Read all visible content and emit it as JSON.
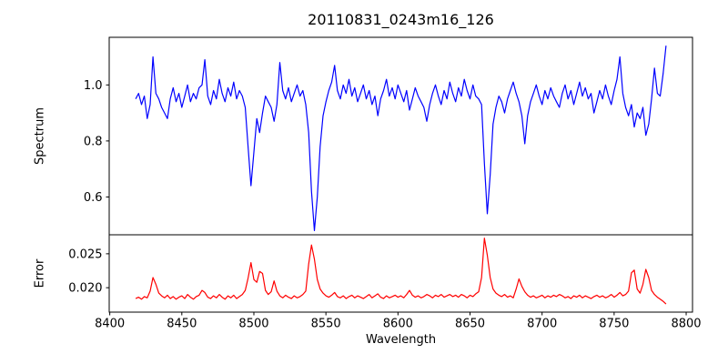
{
  "chart_data": {
    "type": "line",
    "title": "20110831_0243m16_126",
    "xlabel": "Wavelength",
    "grid": false,
    "legend": "none",
    "xlim": [
      8399.6,
      8804.4
    ],
    "x_ticks": [
      8400,
      8450,
      8500,
      8550,
      8600,
      8650,
      8700,
      8750,
      8800
    ],
    "x_tick_labels": [
      "8400",
      "8450",
      "8500",
      "8550",
      "8600",
      "8650",
      "8700",
      "8750",
      "8800"
    ],
    "x_start": 8418,
    "x_step": 2,
    "axis_color": "#000000",
    "panels": [
      {
        "name": "spectrum",
        "ylabel": "Spectrum",
        "color": "#0000ff",
        "ylim": [
          0.465,
          1.17
        ],
        "y_ticks": [
          0.6,
          0.8,
          1.0
        ],
        "y_tick_labels": [
          "0.6",
          "0.8",
          "1.0"
        ],
        "absorption_line_centers": [
          8498,
          8542,
          8662,
          8688
        ],
        "values": [
          0.95,
          0.97,
          0.93,
          0.96,
          0.88,
          0.93,
          1.1,
          0.97,
          0.95,
          0.92,
          0.9,
          0.88,
          0.95,
          0.99,
          0.94,
          0.97,
          0.92,
          0.96,
          1.0,
          0.94,
          0.97,
          0.95,
          0.99,
          1.0,
          1.09,
          0.96,
          0.93,
          0.98,
          0.95,
          1.02,
          0.97,
          0.94,
          0.99,
          0.96,
          1.01,
          0.95,
          0.98,
          0.96,
          0.92,
          0.78,
          0.64,
          0.76,
          0.88,
          0.83,
          0.9,
          0.96,
          0.94,
          0.92,
          0.87,
          0.93,
          1.08,
          0.98,
          0.95,
          0.99,
          0.94,
          0.97,
          1.0,
          0.96,
          0.98,
          0.93,
          0.83,
          0.62,
          0.48,
          0.6,
          0.78,
          0.89,
          0.94,
          0.98,
          1.01,
          1.07,
          0.98,
          0.95,
          1.0,
          0.97,
          1.02,
          0.96,
          0.99,
          0.94,
          0.97,
          1.0,
          0.95,
          0.98,
          0.93,
          0.96,
          0.89,
          0.95,
          0.98,
          1.02,
          0.96,
          0.99,
          0.95,
          1.0,
          0.97,
          0.94,
          0.98,
          0.91,
          0.95,
          0.99,
          0.96,
          0.94,
          0.92,
          0.87,
          0.93,
          0.97,
          1.0,
          0.96,
          0.93,
          0.98,
          0.95,
          1.01,
          0.97,
          0.94,
          0.99,
          0.96,
          1.02,
          0.98,
          0.95,
          1.0,
          0.96,
          0.95,
          0.93,
          0.72,
          0.54,
          0.68,
          0.86,
          0.92,
          0.96,
          0.94,
          0.9,
          0.95,
          0.98,
          1.01,
          0.97,
          0.94,
          0.89,
          0.79,
          0.89,
          0.94,
          0.97,
          1.0,
          0.96,
          0.93,
          0.98,
          0.95,
          0.99,
          0.96,
          0.94,
          0.92,
          0.97,
          1.0,
          0.95,
          0.98,
          0.93,
          0.97,
          1.01,
          0.96,
          0.99,
          0.95,
          0.97,
          0.9,
          0.94,
          0.98,
          0.95,
          1.0,
          0.96,
          0.93,
          0.98,
          1.02,
          1.1,
          0.97,
          0.92,
          0.89,
          0.93,
          0.85,
          0.9,
          0.88,
          0.92,
          0.82,
          0.86,
          0.95,
          1.06,
          0.97,
          0.96,
          1.04,
          1.14
        ]
      },
      {
        "name": "error",
        "ylabel": "Error",
        "color": "#ff0000",
        "ylim": [
          0.0164,
          0.0278
        ],
        "y_ticks": [
          0.02,
          0.025
        ],
        "y_tick_labels": [
          "0.020",
          "0.025"
        ],
        "values": [
          0.0184,
          0.0186,
          0.0183,
          0.0187,
          0.0185,
          0.0195,
          0.0215,
          0.0205,
          0.0192,
          0.0188,
          0.0185,
          0.0189,
          0.0184,
          0.0187,
          0.0183,
          0.0186,
          0.0188,
          0.0184,
          0.019,
          0.0186,
          0.0183,
          0.0187,
          0.0189,
          0.0196,
          0.0193,
          0.0186,
          0.0184,
          0.0188,
          0.0185,
          0.019,
          0.0186,
          0.0183,
          0.0188,
          0.0185,
          0.0189,
          0.0184,
          0.0187,
          0.019,
          0.0196,
          0.0214,
          0.0237,
          0.0212,
          0.0208,
          0.0224,
          0.0221,
          0.0196,
          0.019,
          0.0194,
          0.021,
          0.0195,
          0.0188,
          0.0185,
          0.0189,
          0.0186,
          0.0184,
          0.0188,
          0.0185,
          0.0187,
          0.019,
          0.0195,
          0.0235,
          0.0263,
          0.0242,
          0.0212,
          0.0198,
          0.0192,
          0.0188,
          0.0186,
          0.0189,
          0.0193,
          0.0187,
          0.0185,
          0.0188,
          0.0184,
          0.0187,
          0.0189,
          0.0185,
          0.0188,
          0.0186,
          0.0184,
          0.0187,
          0.019,
          0.0185,
          0.0188,
          0.0191,
          0.0186,
          0.0184,
          0.0188,
          0.0185,
          0.0187,
          0.0189,
          0.0186,
          0.0188,
          0.0185,
          0.019,
          0.0196,
          0.0189,
          0.0186,
          0.0188,
          0.0185,
          0.0187,
          0.019,
          0.0188,
          0.0185,
          0.0189,
          0.0187,
          0.019,
          0.0186,
          0.0188,
          0.019,
          0.0187,
          0.0189,
          0.0186,
          0.019,
          0.0188,
          0.0185,
          0.0189,
          0.0187,
          0.0191,
          0.0194,
          0.0215,
          0.0273,
          0.0248,
          0.0215,
          0.0198,
          0.0192,
          0.0189,
          0.0187,
          0.019,
          0.0186,
          0.0188,
          0.0185,
          0.0198,
          0.0213,
          0.0202,
          0.0194,
          0.0189,
          0.0186,
          0.0188,
          0.0185,
          0.0187,
          0.0189,
          0.0185,
          0.0188,
          0.0186,
          0.0189,
          0.0187,
          0.019,
          0.0188,
          0.0185,
          0.0187,
          0.0184,
          0.0188,
          0.0186,
          0.0189,
          0.0185,
          0.0188,
          0.0186,
          0.0184,
          0.0187,
          0.0189,
          0.0186,
          0.0188,
          0.0185,
          0.0187,
          0.019,
          0.0186,
          0.0189,
          0.0193,
          0.0188,
          0.019,
          0.0195,
          0.0222,
          0.0226,
          0.0198,
          0.0192,
          0.0205,
          0.0227,
          0.0215,
          0.0196,
          0.019,
          0.0186,
          0.0183,
          0.018,
          0.0176
        ]
      }
    ]
  }
}
